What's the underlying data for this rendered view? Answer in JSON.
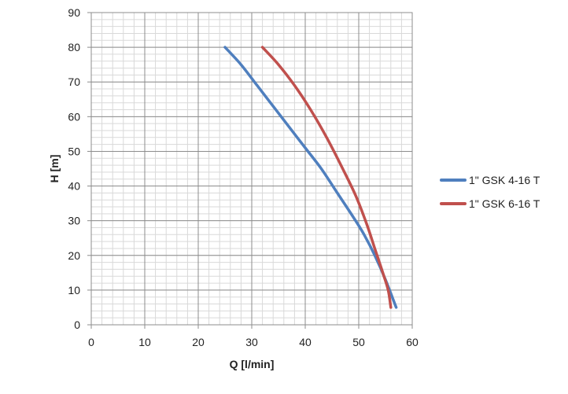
{
  "chart_data": {
    "type": "line",
    "title": "",
    "xlabel": "Q [l/min]",
    "ylabel": "H [m]",
    "xlim": [
      0,
      60
    ],
    "ylim": [
      0,
      90
    ],
    "x_ticks": [
      "0",
      "10",
      "20",
      "30",
      "40",
      "50",
      "60"
    ],
    "y_ticks": [
      "0",
      "10",
      "20",
      "30",
      "40",
      "50",
      "60",
      "70",
      "80",
      "90"
    ],
    "grid": true,
    "legend_position": "right",
    "series": [
      {
        "name": "1\" GSK 4-16 T",
        "color": "#4f7fbe",
        "points": [
          [
            25,
            80
          ],
          [
            28,
            75
          ],
          [
            31,
            69
          ],
          [
            34,
            63
          ],
          [
            37,
            57
          ],
          [
            40,
            51
          ],
          [
            43,
            45
          ],
          [
            46,
            38
          ],
          [
            49,
            31
          ],
          [
            51,
            26
          ],
          [
            53,
            20
          ],
          [
            55,
            13
          ],
          [
            57,
            5
          ]
        ]
      },
      {
        "name": "1\" GSK 6-16 T",
        "color": "#c0504d",
        "points": [
          [
            32,
            80
          ],
          [
            35,
            75
          ],
          [
            38,
            69
          ],
          [
            41,
            62
          ],
          [
            44,
            54
          ],
          [
            47,
            45
          ],
          [
            49.5,
            37
          ],
          [
            51.5,
            29
          ],
          [
            53,
            22
          ],
          [
            54.5,
            15
          ],
          [
            55.5,
            10
          ],
          [
            56,
            5
          ]
        ]
      }
    ]
  }
}
